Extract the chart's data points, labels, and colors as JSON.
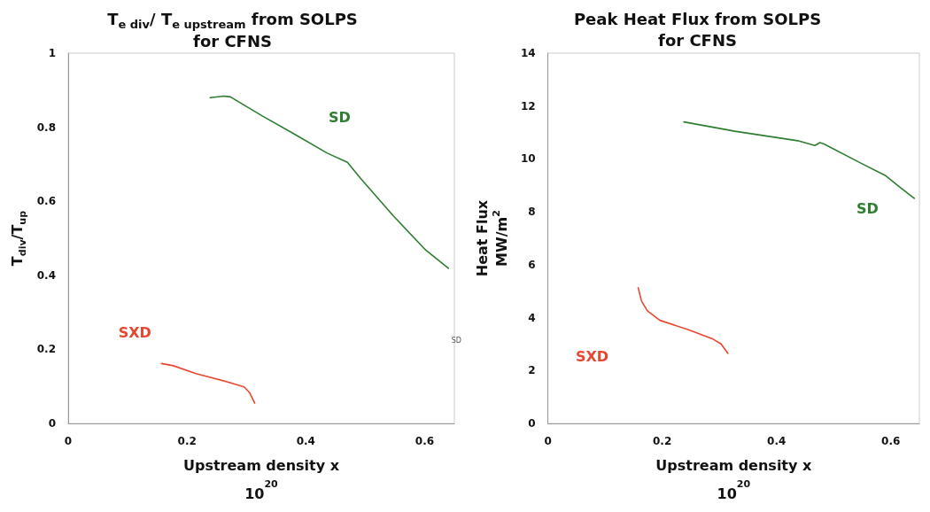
{
  "chart_data": [
    {
      "type": "line",
      "title": "T$_{e div}$/ T$_{e upstream}$ from SOLPS\nfor CFNS",
      "xlabel": "Upstream density x\n10$^{20}$",
      "ylabel": "T$_{div}$/T$_{up}$",
      "xlim": [
        0,
        0.65
      ],
      "xticks": [
        0,
        0.2,
        0.4,
        0.6
      ],
      "ylim": [
        0,
        1
      ],
      "yticks": [
        0,
        0.2,
        0.4,
        0.6,
        0.8,
        1
      ],
      "grid": false,
      "marker": "none",
      "line_style": "solid",
      "series": [
        {
          "name": "SD",
          "color": "#2e7d32",
          "x": [
            0.239,
            0.262,
            0.273,
            0.326,
            0.381,
            0.436,
            0.47,
            0.492,
            0.547,
            0.602,
            0.64
          ],
          "values": [
            0.88,
            0.884,
            0.882,
            0.831,
            0.781,
            0.73,
            0.705,
            0.662,
            0.561,
            0.468,
            0.419
          ]
        },
        {
          "name": "SXD",
          "color": "#e8472f",
          "x": [
            0.157,
            0.177,
            0.215,
            0.271,
            0.296,
            0.305,
            0.314
          ],
          "values": [
            0.162,
            0.156,
            0.135,
            0.111,
            0.099,
            0.084,
            0.055
          ]
        }
      ],
      "annotations": [
        "SD"
      ]
    },
    {
      "type": "line",
      "title": "Peak Heat Flux from SOLPS\nfor CFNS",
      "xlabel": "Upstream density x\n10$^{20}$",
      "ylabel": "Heat Flux\nMW/m$^{2}$",
      "xlim": [
        0,
        0.65
      ],
      "xticks": [
        0,
        0.2,
        0.4,
        0.6
      ],
      "ylim": [
        0,
        14
      ],
      "yticks": [
        0,
        2,
        4,
        6,
        8,
        10,
        12,
        14
      ],
      "grid": false,
      "marker": "none",
      "line_style": "solid",
      "series": [
        {
          "name": "SD",
          "color": "#2e7d32",
          "x": [
            0.238,
            0.327,
            0.437,
            0.467,
            0.476,
            0.483,
            0.546,
            0.59,
            0.618,
            0.641
          ],
          "values": [
            11.4,
            11.05,
            10.69,
            10.51,
            10.62,
            10.57,
            9.86,
            9.38,
            8.9,
            8.51
          ]
        },
        {
          "name": "SXD",
          "color": "#e8472f",
          "x": [
            0.158,
            0.164,
            0.174,
            0.196,
            0.245,
            0.289,
            0.303,
            0.315
          ],
          "values": [
            5.13,
            4.62,
            4.26,
            3.9,
            3.55,
            3.19,
            3.01,
            2.65
          ]
        }
      ]
    }
  ]
}
